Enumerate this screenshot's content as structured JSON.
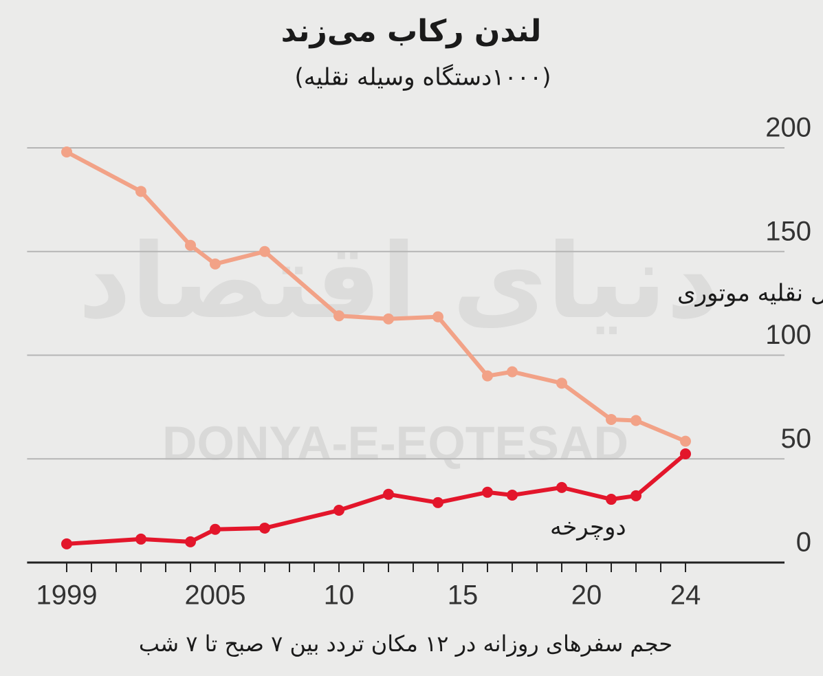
{
  "chart_data": {
    "type": "line",
    "title": "لندن رکاب می‌زند",
    "subtitle": "(۱۰۰۰دستگاه وسیله نقلیه)",
    "footnote": "حجم سفرهای روزانه در ۱۲ مکان تردد بین ۷ صبح تا ۷ شب",
    "watermark": "DONYA-E-EQTESAD",
    "watermark_logo": "دنیای اقتصاد",
    "x": [
      1999,
      2002,
      2004,
      2005,
      2007,
      2010,
      2012,
      2014,
      2016,
      2017,
      2019,
      2021,
      2022,
      2024
    ],
    "series": [
      {
        "name": "وسایل نقلیه موتوری",
        "color": "#f2a287",
        "values": [
          198,
          179,
          153,
          144,
          150,
          119,
          117.5,
          118.5,
          90,
          92,
          86.5,
          69,
          68.5,
          58.5
        ]
      },
      {
        "name": "دوچرخه",
        "color": "#e3162b",
        "values": [
          9,
          11.3,
          10,
          16,
          16.6,
          25.2,
          32.9,
          28.9,
          33.9,
          32.5,
          36.2,
          30.5,
          32.2,
          52.4
        ]
      }
    ],
    "xlim": [
      1997.4,
      2028
    ],
    "ylim": [
      0,
      200
    ],
    "yticks": [
      0,
      50,
      100,
      150,
      200
    ],
    "xticks": [
      1999,
      2005,
      {
        "value": 2010,
        "label": "10"
      },
      {
        "value": 2015,
        "label": "15"
      },
      {
        "value": 2020,
        "label": "20"
      },
      {
        "value": 2024,
        "label": "24"
      }
    ],
    "x_minor_ticks": [
      1999,
      2000,
      2001,
      2002,
      2003,
      2004,
      2005,
      2006,
      2007,
      2008,
      2009,
      2010,
      2011,
      2012,
      2013,
      2014,
      2015,
      2016,
      2017,
      2018,
      2019,
      2020,
      2021,
      2022,
      2023,
      2024
    ],
    "grid": true
  }
}
